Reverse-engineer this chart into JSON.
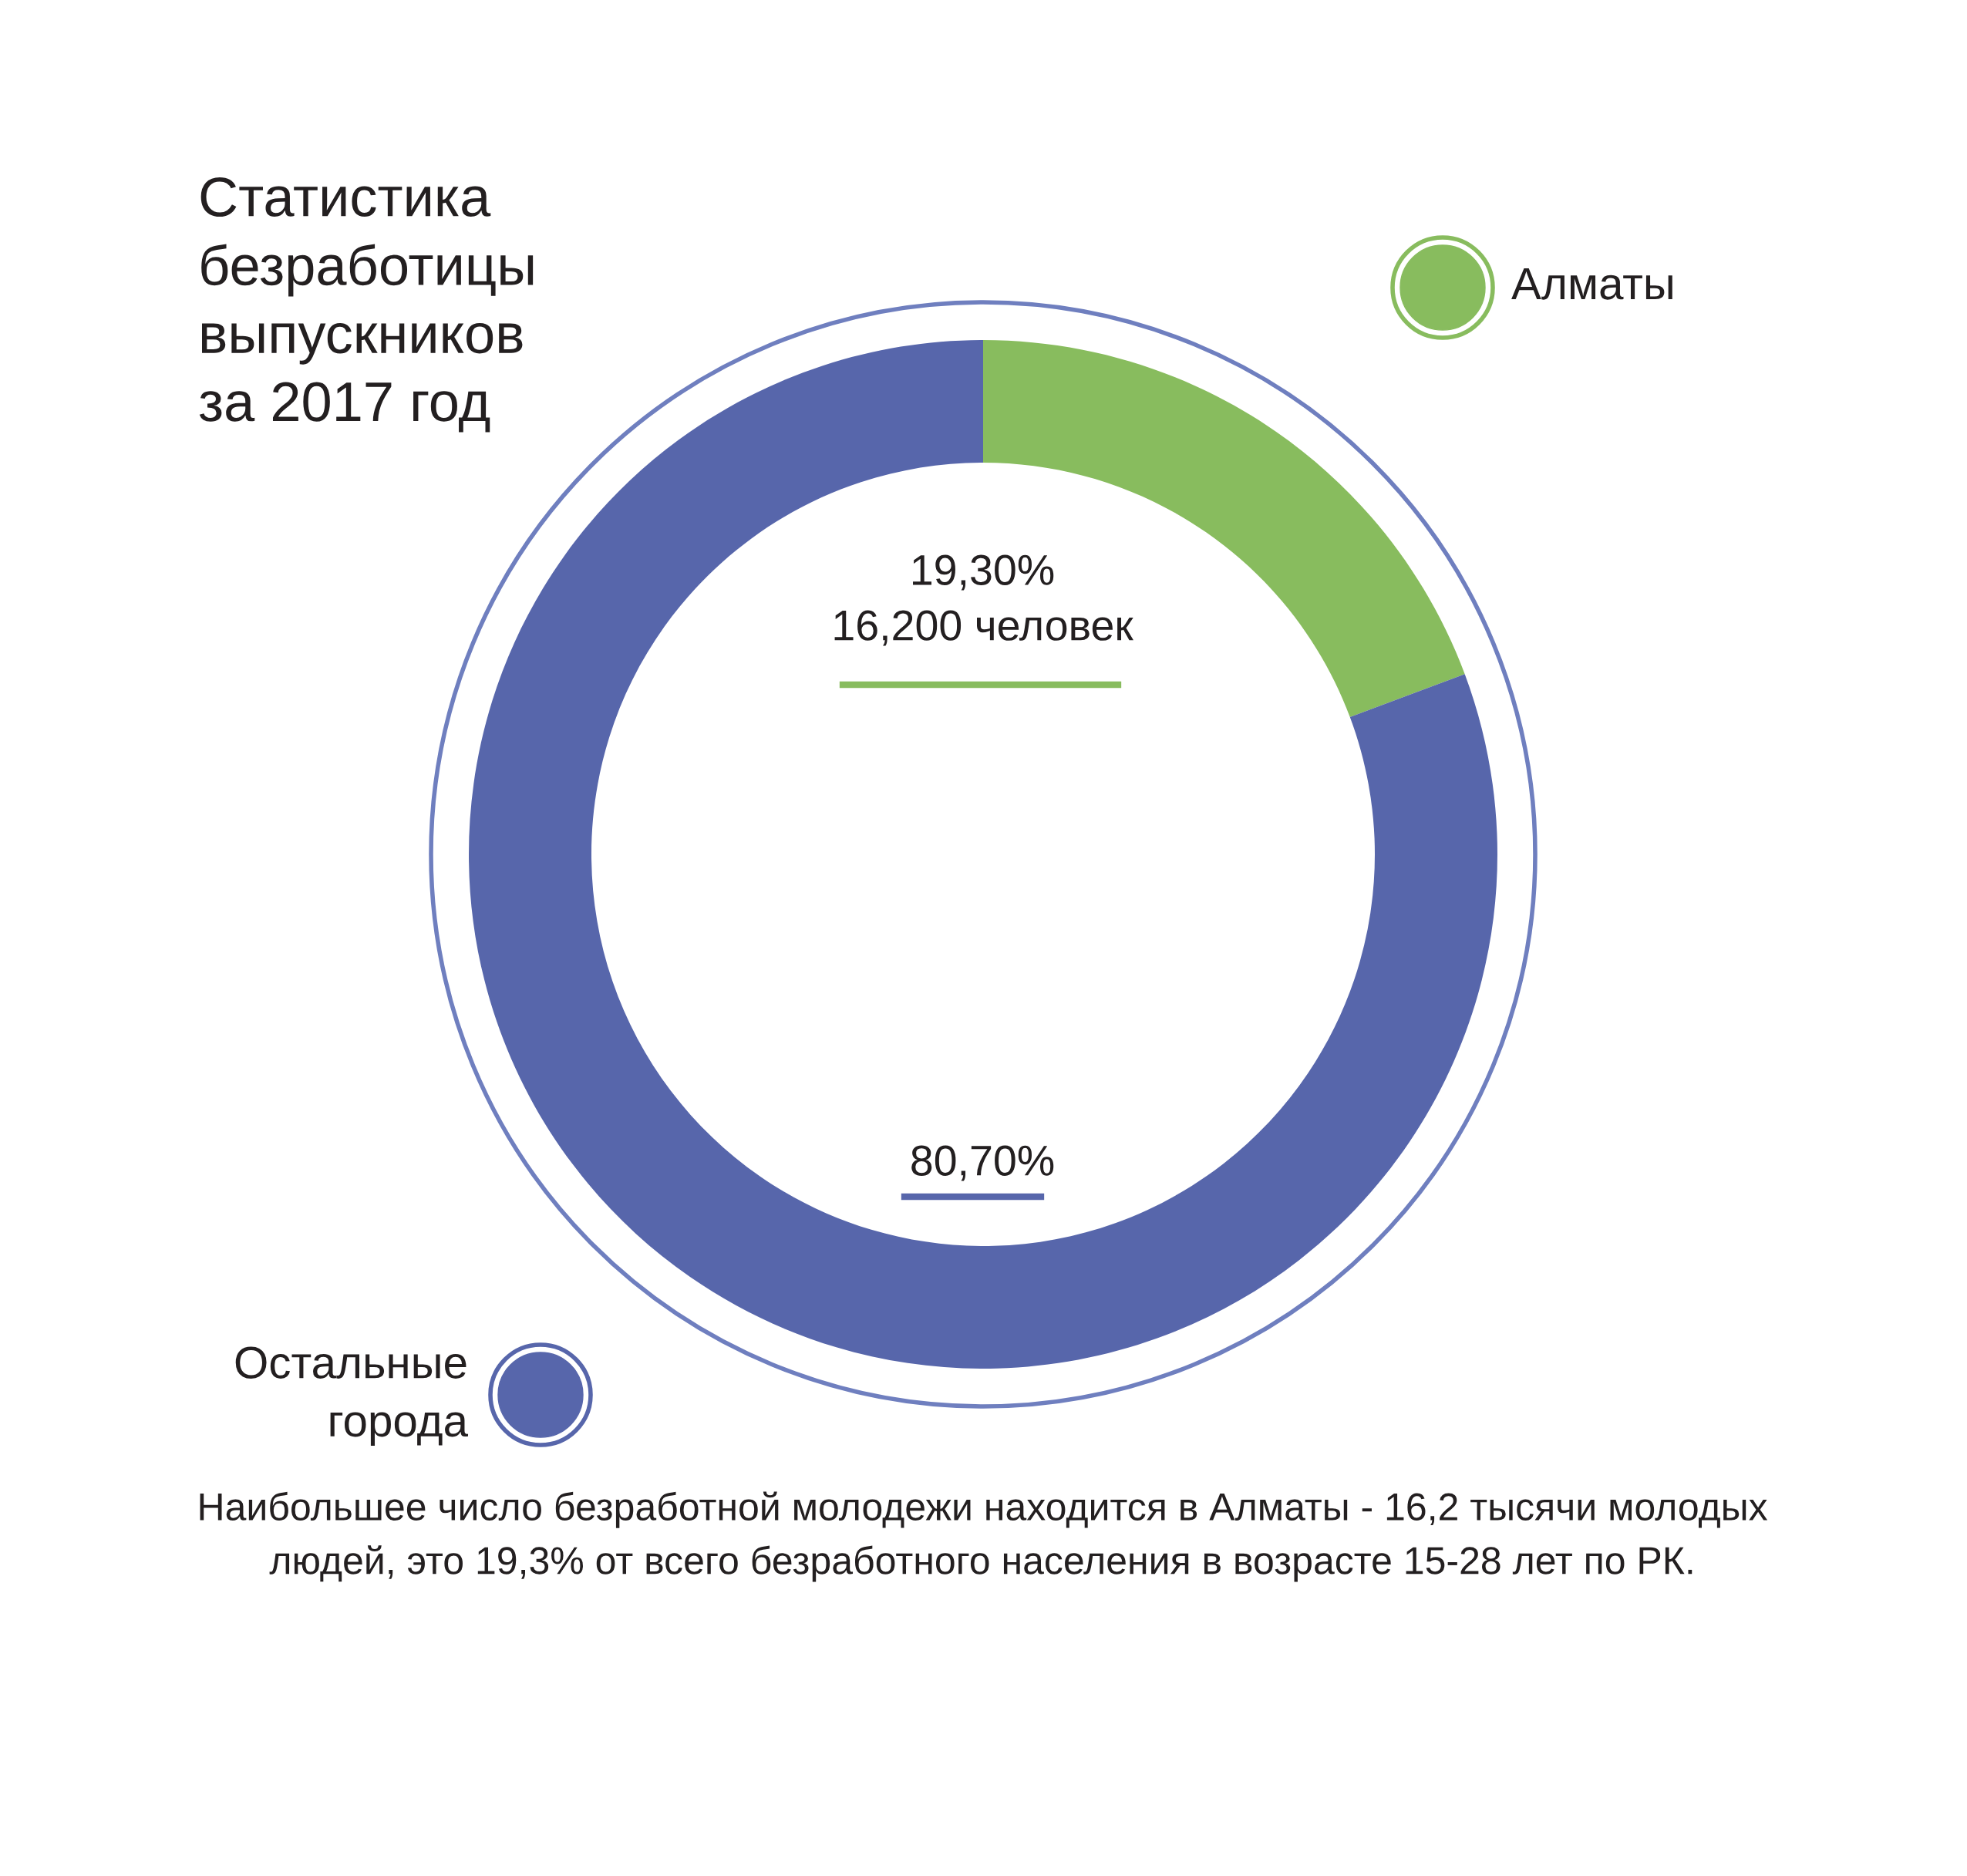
{
  "chart_data": {
    "type": "donut",
    "title": "Статистика\nбезработицы\nвыпускников\nза 2017 год",
    "categories": [
      "Алматы",
      "Остальные\nгорода"
    ],
    "values": [
      19.3,
      80.7
    ],
    "colors": [
      "#88bc5e",
      "#5766ab"
    ],
    "value_labels": [
      "19,30%\n16,200 человек",
      "80,70%"
    ],
    "legend": "top right",
    "annotations": [
      "Наибольшее число безработной молодежи находится в Алматы - 16,2 тысячи молодых\nлюдей, это 19,3% от всего безработного населения в возрасте 15-28 лет по РК."
    ]
  }
}
